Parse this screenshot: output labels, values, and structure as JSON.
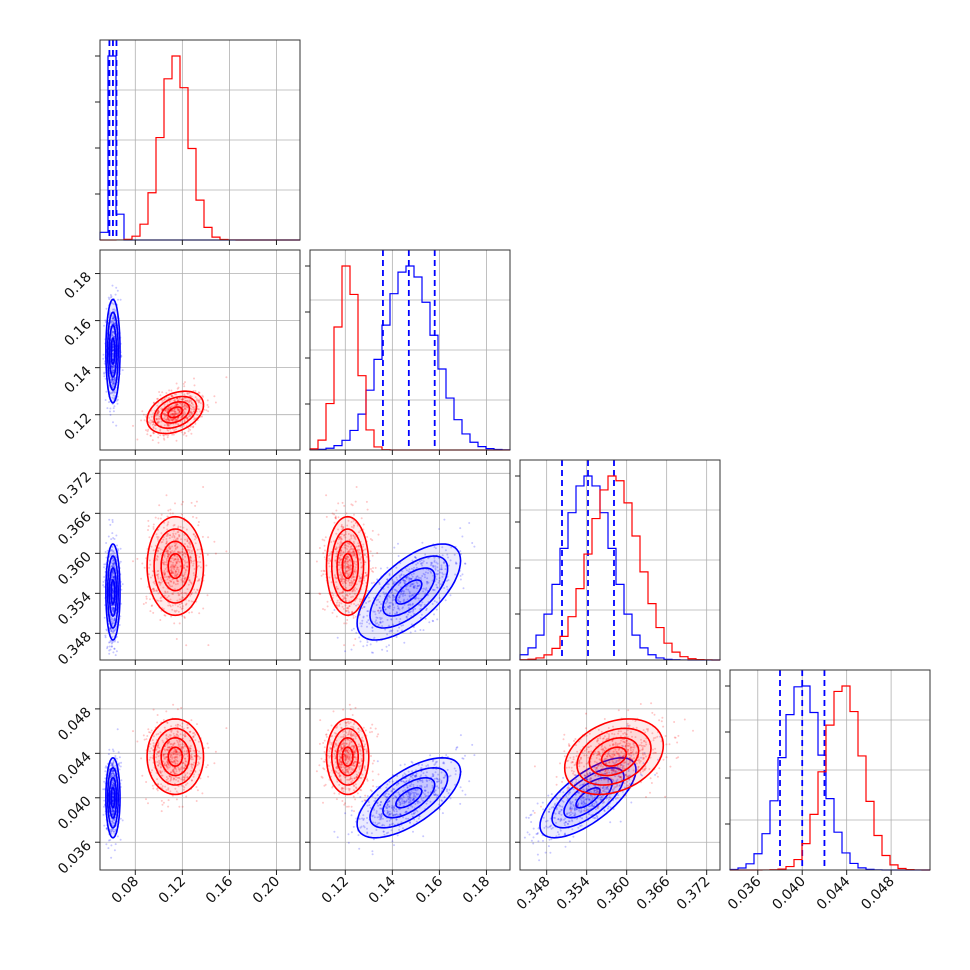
{
  "chart_data": {
    "type": "scatter",
    "layout": "corner-plot",
    "grid": true,
    "colors": {
      "blue": "#0000ff",
      "red": "#ff0000"
    },
    "parameters": [
      {
        "ticks": [
          "0.08",
          "0.12",
          "0.16",
          "0.20"
        ],
        "range": [
          0.05,
          0.22
        ]
      },
      {
        "ticks": [
          "0.12",
          "0.14",
          "0.16",
          "0.18"
        ],
        "range": [
          0.105,
          0.19
        ]
      },
      {
        "ticks": [
          "0.348",
          "0.354",
          "0.360",
          "0.366",
          "0.372"
        ],
        "range": [
          0.344,
          0.374
        ]
      },
      {
        "ticks": [
          "0.036",
          "0.040",
          "0.044",
          "0.048"
        ],
        "range": [
          0.0335,
          0.0515
        ]
      }
    ],
    "series": [
      {
        "color": "#0000ff",
        "mean": [
          0.061,
          0.147,
          0.3542,
          0.04
        ],
        "sd": [
          0.003,
          0.011,
          0.0036,
          0.0018
        ],
        "corr": [
          [
            0,
            1,
            0.0
          ],
          [
            0,
            2,
            0.0
          ],
          [
            0,
            3,
            0.0
          ],
          [
            1,
            2,
            0.65
          ],
          [
            1,
            3,
            0.65
          ],
          [
            2,
            3,
            0.7
          ]
        ],
        "quantiles": [
          [
            0.058,
            0.061,
            0.064
          ],
          [
            0.136,
            0.147,
            0.158
          ],
          [
            0.3503,
            0.3542,
            0.3581
          ],
          [
            0.038,
            0.04,
            0.042
          ]
        ],
        "n": 600
      },
      {
        "color": "#ff0000",
        "mean": [
          0.114,
          0.121,
          0.3581,
          0.0437
        ],
        "sd": [
          0.012,
          0.0045,
          0.0037,
          0.0017
        ],
        "corr": [
          [
            0,
            1,
            0.35
          ],
          [
            0,
            2,
            0.0
          ],
          [
            0,
            3,
            0.0
          ],
          [
            1,
            2,
            0.0
          ],
          [
            1,
            3,
            0.0
          ],
          [
            2,
            3,
            0.3
          ]
        ],
        "n": 600
      }
    ]
  }
}
